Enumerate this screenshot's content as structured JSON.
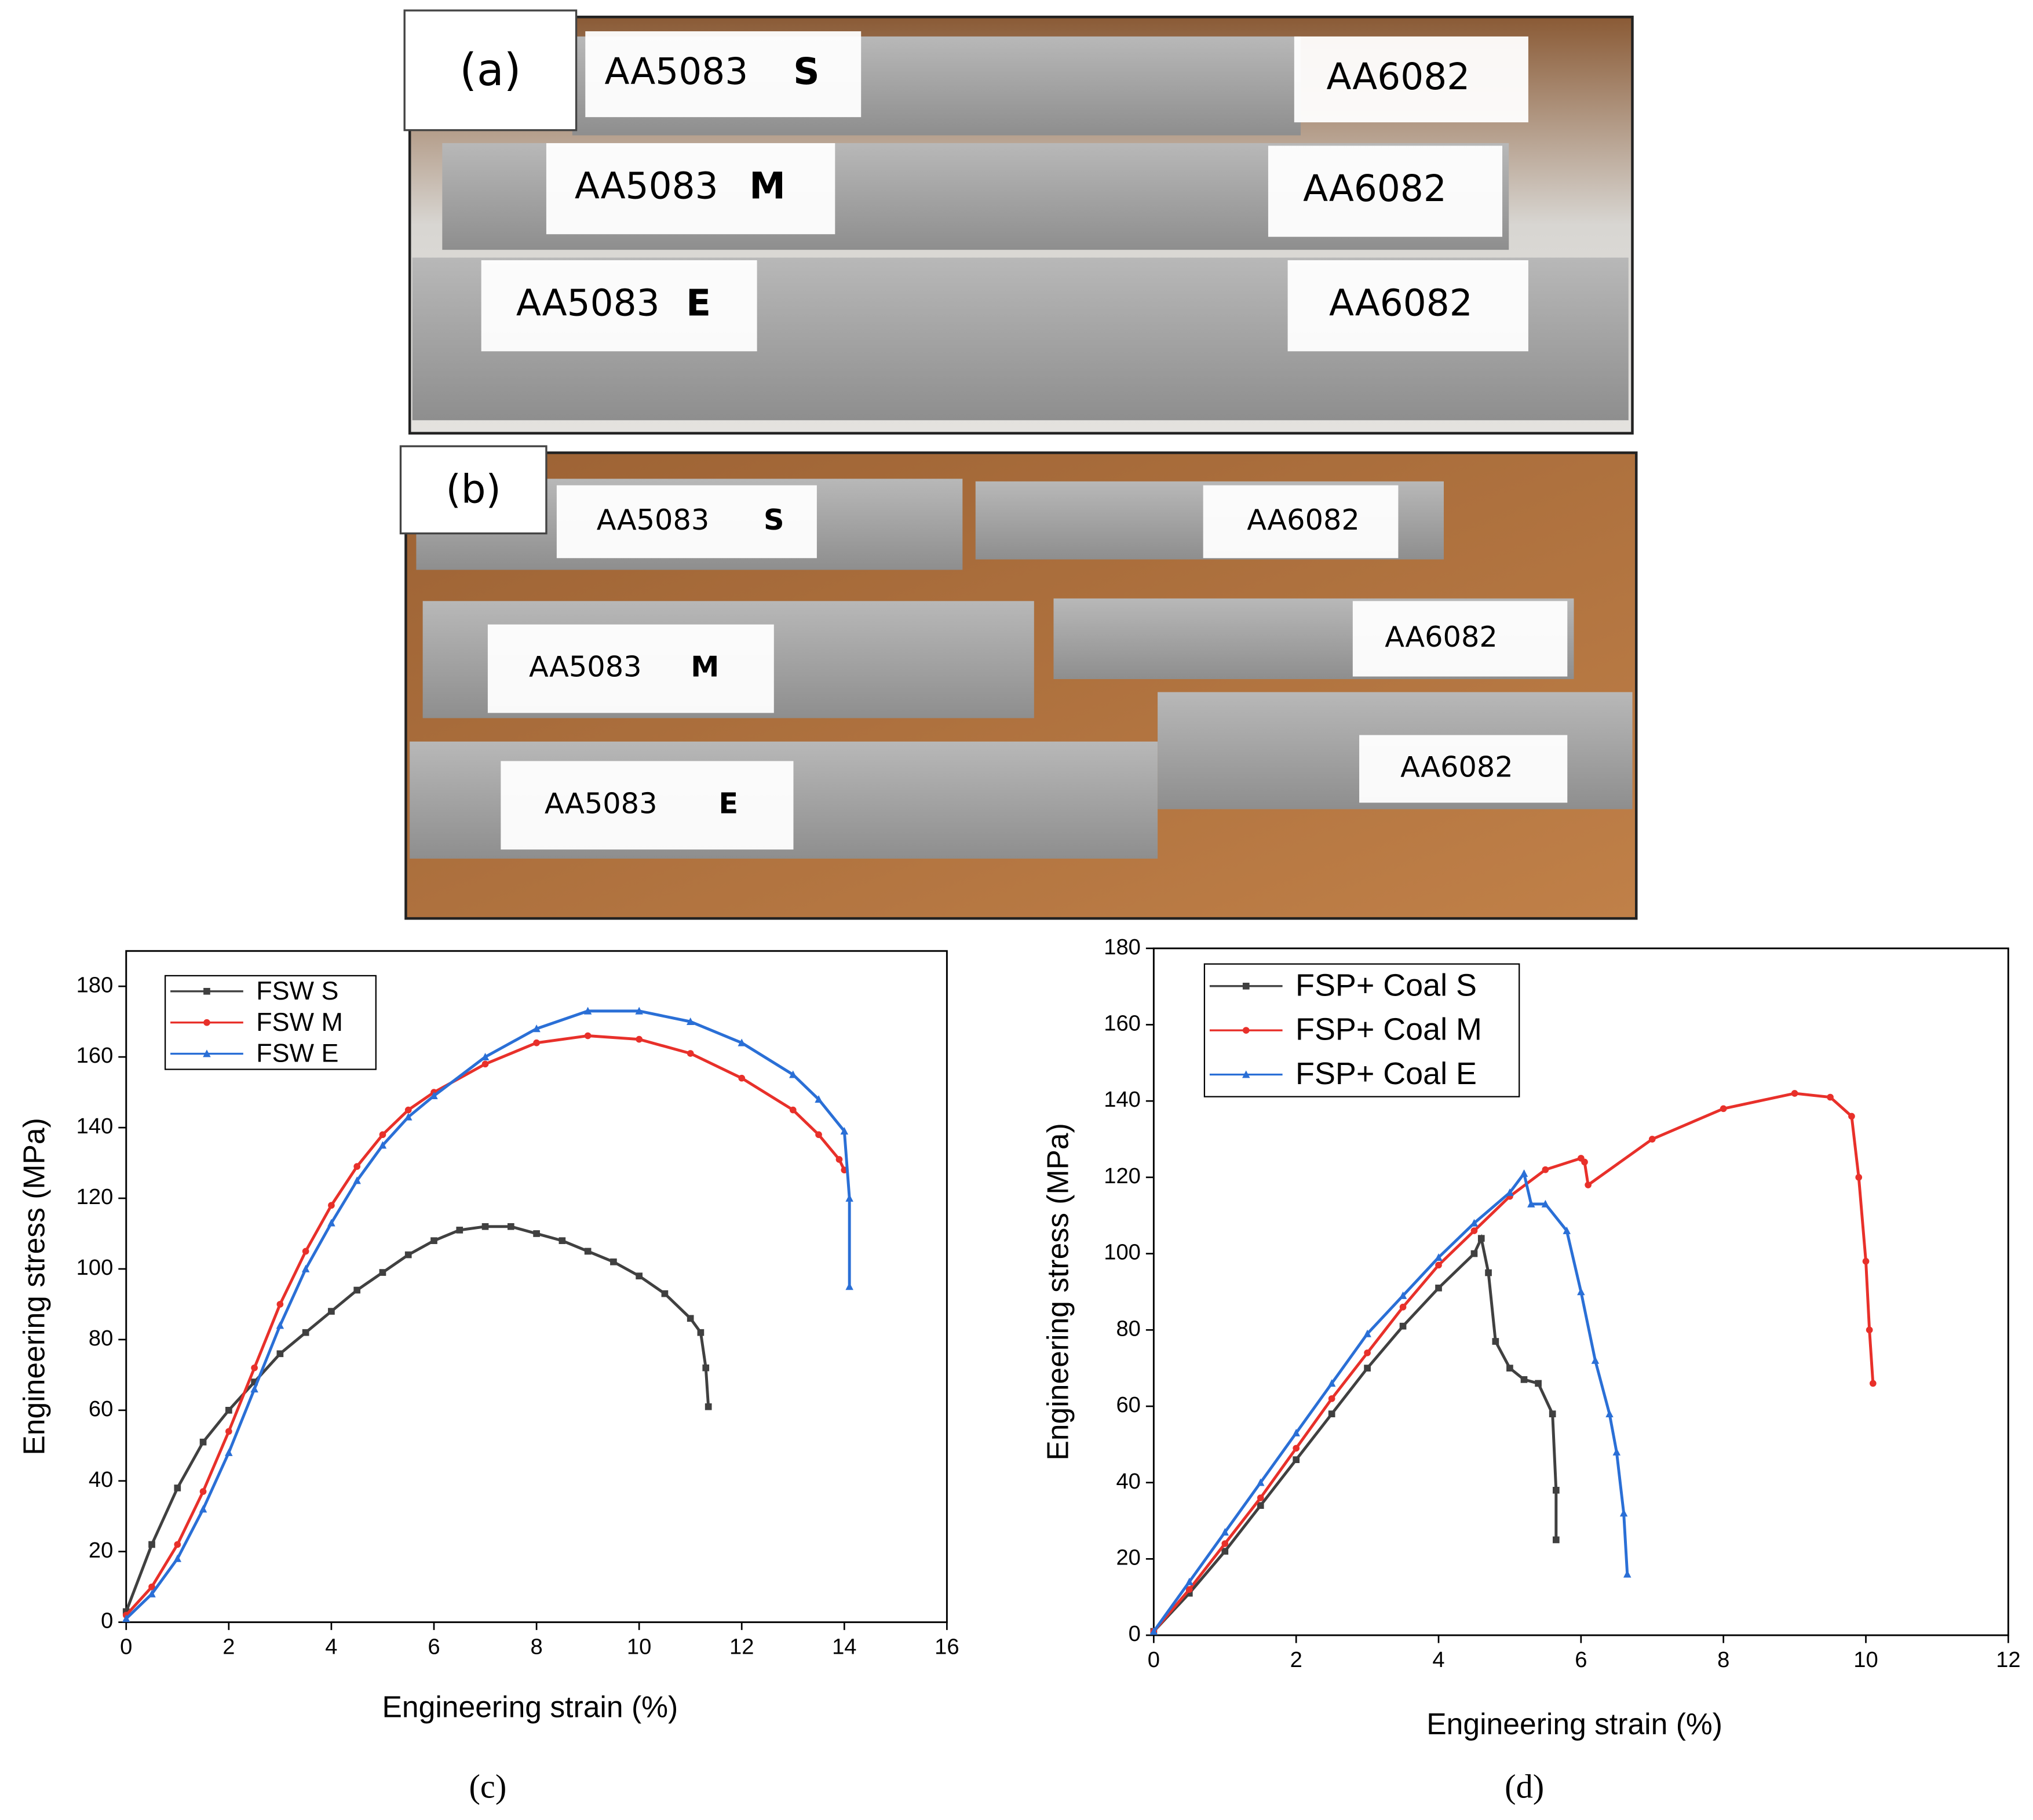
{
  "photos": [
    {
      "label": "(a)",
      "rows": [
        {
          "left": "AA5083",
          "tag": "S",
          "right": "AA6082"
        },
        {
          "left": "AA5083",
          "tag": "M",
          "right": "AA6082"
        },
        {
          "left": "AA5083",
          "tag": "E",
          "right": "AA6082"
        }
      ]
    },
    {
      "label": "(b)",
      "rows": [
        {
          "left": "AA5083",
          "tag": "S",
          "right": "AA6082"
        },
        {
          "left": "AA5083",
          "tag": "M",
          "right": "AA6082"
        },
        {
          "left": "AA5083",
          "tag": "E",
          "right": "AA6082"
        }
      ]
    }
  ],
  "chart_data": [
    {
      "type": "line",
      "caption": "(c)",
      "xlabel": "Engineering strain (%)",
      "ylabel": "Engineering stress (MPa)",
      "xlim": [
        0,
        16
      ],
      "ylim": [
        0,
        190
      ],
      "xticks": [
        0,
        2,
        4,
        6,
        8,
        10,
        12,
        14,
        16
      ],
      "yticks": [
        0,
        20,
        40,
        60,
        80,
        100,
        120,
        140,
        160,
        180
      ],
      "legend": "upper left",
      "series": [
        {
          "name": "FSW S",
          "color": "#404040",
          "marker": "square",
          "x": [
            0,
            0.5,
            1,
            1.5,
            2,
            2.5,
            3,
            3.5,
            4,
            4.5,
            5,
            5.5,
            6,
            6.5,
            7,
            7.5,
            8,
            8.5,
            9,
            9.5,
            10,
            10.5,
            11,
            11.2,
            11.3,
            11.35
          ],
          "values": [
            3,
            22,
            38,
            51,
            60,
            68,
            76,
            82,
            88,
            94,
            99,
            104,
            108,
            111,
            112,
            112,
            110,
            108,
            105,
            102,
            98,
            93,
            86,
            82,
            72,
            61
          ]
        },
        {
          "name": "FSW M",
          "color": "#e8302a",
          "marker": "circle",
          "x": [
            0,
            0.5,
            1,
            1.5,
            2,
            2.5,
            3,
            3.5,
            4,
            4.5,
            5,
            5.5,
            6,
            7,
            8,
            9,
            10,
            11,
            12,
            13,
            13.5,
            13.9,
            14
          ],
          "values": [
            2,
            10,
            22,
            37,
            54,
            72,
            90,
            105,
            118,
            129,
            138,
            145,
            150,
            158,
            164,
            166,
            165,
            161,
            154,
            145,
            138,
            131,
            128
          ]
        },
        {
          "name": "FSW E",
          "color": "#2a6fd6",
          "marker": "triangle",
          "x": [
            0,
            0.5,
            1,
            1.5,
            2,
            2.5,
            3,
            3.5,
            4,
            4.5,
            5,
            5.5,
            6,
            7,
            8,
            9,
            10,
            11,
            12,
            13,
            13.5,
            14,
            14.1,
            14.1
          ],
          "values": [
            1,
            8,
            18,
            32,
            48,
            66,
            84,
            100,
            113,
            125,
            135,
            143,
            149,
            160,
            168,
            173,
            173,
            170,
            164,
            155,
            148,
            139,
            120,
            95
          ]
        }
      ]
    },
    {
      "type": "line",
      "caption": "(d)",
      "xlabel": "Engineering strain (%)",
      "ylabel": "Engineering stress (MPa)",
      "xlim": [
        0,
        12
      ],
      "ylim": [
        0,
        180
      ],
      "xticks": [
        0,
        2,
        4,
        6,
        8,
        10,
        12
      ],
      "yticks": [
        0,
        20,
        40,
        60,
        80,
        100,
        120,
        140,
        160,
        180
      ],
      "legend": "upper left",
      "series": [
        {
          "name": "FSP+ Coal S",
          "color": "#404040",
          "marker": "square",
          "x": [
            0,
            0.5,
            1,
            1.5,
            2,
            2.5,
            3,
            3.5,
            4,
            4.5,
            4.6,
            4.7,
            4.8,
            5,
            5.2,
            5.4,
            5.6,
            5.65,
            5.65
          ],
          "values": [
            1,
            11,
            22,
            34,
            46,
            58,
            70,
            81,
            91,
            100,
            104,
            95,
            77,
            70,
            67,
            66,
            58,
            38,
            25
          ]
        },
        {
          "name": "FSP+ Coal M",
          "color": "#e8302a",
          "marker": "circle",
          "x": [
            0,
            0.5,
            1,
            1.5,
            2,
            2.5,
            3,
            3.5,
            4,
            4.5,
            5,
            5.5,
            6,
            6.05,
            6.1,
            7,
            8,
            9,
            9.5,
            9.8,
            9.9,
            10,
            10.05,
            10.1
          ],
          "values": [
            1,
            12,
            24,
            36,
            49,
            62,
            74,
            86,
            97,
            106,
            115,
            122,
            125,
            124,
            118,
            130,
            138,
            142,
            141,
            136,
            120,
            98,
            80,
            66
          ]
        },
        {
          "name": "FSP+ Coal E",
          "color": "#2a6fd6",
          "marker": "triangle",
          "x": [
            0,
            0.5,
            1,
            1.5,
            2,
            2.5,
            3,
            3.5,
            4,
            4.5,
            5,
            5.2,
            5.3,
            5.5,
            5.8,
            6,
            6.2,
            6.4,
            6.5,
            6.6,
            6.65
          ],
          "values": [
            1,
            14,
            27,
            40,
            53,
            66,
            79,
            89,
            99,
            108,
            116,
            121,
            113,
            113,
            106,
            90,
            72,
            58,
            48,
            32,
            16
          ]
        }
      ]
    }
  ]
}
